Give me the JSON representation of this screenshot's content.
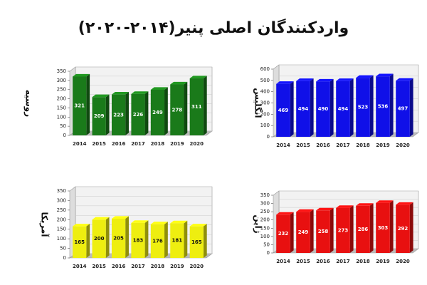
{
  "title": "واردکنندگان اصلی پنیر(۲۰۱۴-۲۰۲۰)",
  "chart_data": [
    {
      "type": "bar",
      "ylabel": "روسیه",
      "categories": [
        "2014",
        "2015",
        "2016",
        "2017",
        "2018",
        "2019",
        "2020"
      ],
      "values": [
        321,
        209,
        223,
        226,
        249,
        278,
        311
      ],
      "color": "#1a7a1a",
      "ylim": [
        0,
        350
      ],
      "yticks": [
        0,
        50,
        100,
        150,
        200,
        250,
        300,
        350
      ]
    },
    {
      "type": "bar",
      "ylabel": "انگلیس",
      "categories": [
        "2014",
        "2015",
        "2016",
        "2017",
        "2018",
        "2019",
        "2020"
      ],
      "values": [
        469,
        494,
        490,
        494,
        523,
        536,
        497
      ],
      "color": "#1010e8",
      "ylim": [
        0,
        600
      ],
      "yticks": [
        0,
        100,
        200,
        300,
        400,
        500,
        600
      ]
    },
    {
      "type": "bar",
      "ylabel": "آمریکا",
      "categories": [
        "2014",
        "2015",
        "2016",
        "2017",
        "2018",
        "2019",
        "2020"
      ],
      "values": [
        165,
        200,
        205,
        183,
        176,
        181,
        165
      ],
      "color": "#eeee10",
      "ylim": [
        0,
        350
      ],
      "yticks": [
        0,
        50,
        100,
        150,
        200,
        250,
        300,
        350
      ]
    },
    {
      "type": "bar",
      "ylabel": "ژاپن",
      "categories": [
        "2014",
        "2015",
        "2016",
        "2017",
        "2018",
        "2019",
        "2020"
      ],
      "values": [
        232,
        249,
        258,
        273,
        286,
        303,
        292
      ],
      "color": "#e81010",
      "ylim": [
        0,
        350
      ],
      "yticks": [
        0,
        50,
        100,
        150,
        200,
        250,
        300,
        350
      ]
    }
  ]
}
